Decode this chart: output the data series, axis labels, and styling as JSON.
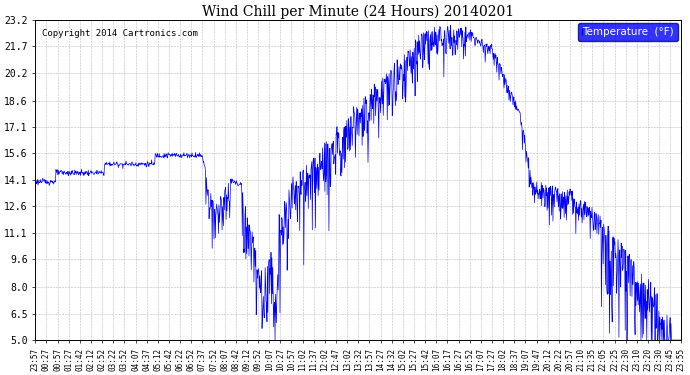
{
  "title": "Wind Chill per Minute (24 Hours) 20140201",
  "copyright": "Copyright 2014 Cartronics.com",
  "legend_label": "Temperature  (°F)",
  "line_color": "blue",
  "background_color": "#ffffff",
  "grid_color": "#aaaaaa",
  "ylim": [
    5.0,
    23.2
  ],
  "yticks": [
    5.0,
    6.5,
    8.0,
    9.6,
    11.1,
    12.6,
    14.1,
    15.6,
    17.1,
    18.6,
    20.2,
    21.7,
    23.2
  ],
  "xtick_labels": [
    "23:57",
    "00:27",
    "00:57",
    "01:27",
    "01:42",
    "02:12",
    "02:52",
    "03:22",
    "03:52",
    "04:07",
    "04:37",
    "05:12",
    "05:42",
    "06:22",
    "06:52",
    "07:37",
    "07:52",
    "08:07",
    "08:42",
    "09:12",
    "09:52",
    "10:07",
    "10:27",
    "10:57",
    "11:02",
    "11:37",
    "12:02",
    "12:47",
    "13:02",
    "13:32",
    "13:57",
    "14:27",
    "14:32",
    "15:02",
    "15:27",
    "15:42",
    "16:07",
    "16:17",
    "16:27",
    "16:52",
    "17:07",
    "17:27",
    "18:02",
    "18:37",
    "19:07",
    "19:47",
    "20:12",
    "20:22",
    "20:57",
    "21:10",
    "21:35",
    "22:05",
    "22:25",
    "22:30",
    "23:10",
    "23:20",
    "23:30",
    "23:45",
    "23:55"
  ]
}
